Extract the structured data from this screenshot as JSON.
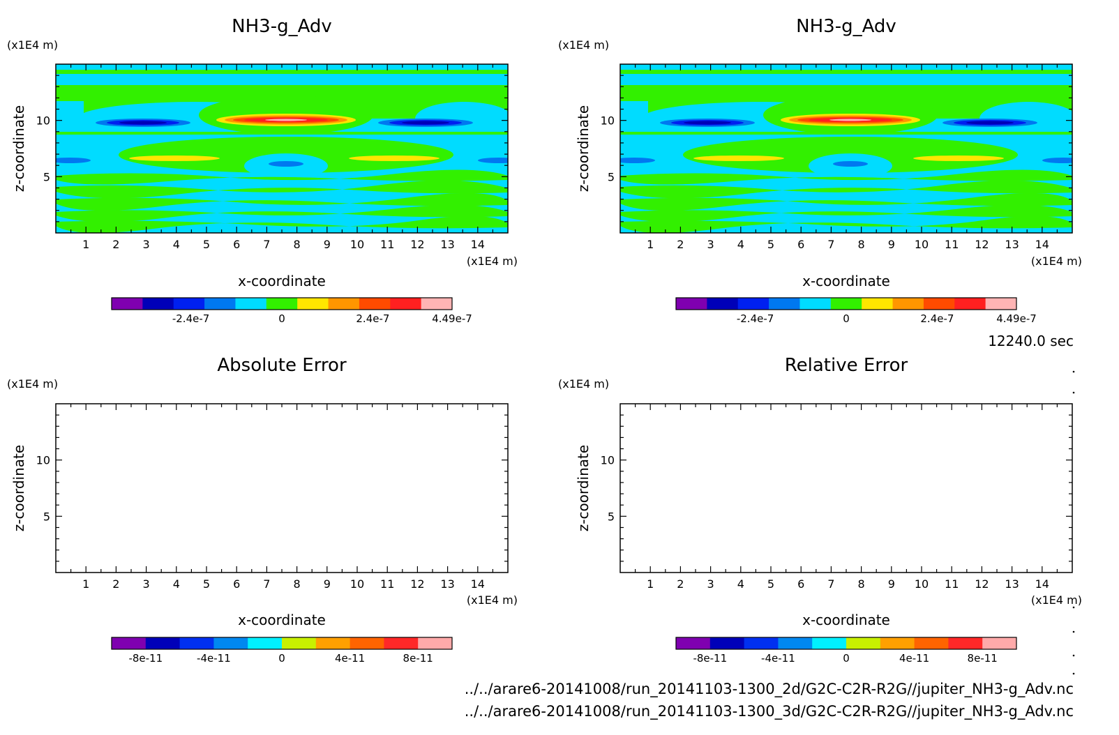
{
  "time_label": "12240.0 sec",
  "files": [
    "../../arare6-20141008/run_20141103-1300_2d/G2C-C2R-R2G//jupiter_NH3-g_Adv.nc",
    "../../arare6-20141008/run_20141103-1300_3d/G2C-C2R-R2G//jupiter_NH3-g_Adv.nc"
  ],
  "colors": {
    "levels_top": [
      "#7f00b0",
      "#0000b8",
      "#0020f0",
      "#0078f0",
      "#00dcff",
      "#32f000",
      "#ffe600",
      "#ff9600",
      "#ff4b00",
      "#ff2020",
      "#ffb4b4"
    ],
    "levels_bottom": [
      "#7f00b0",
      "#0000b8",
      "#0030f0",
      "#0088f0",
      "#00f0ff",
      "#c8f000",
      "#ffa000",
      "#ff6400",
      "#ff2828",
      "#ffaaaa"
    ]
  },
  "chart_data": [
    {
      "type": "heatmap",
      "title": "NH3-g_Adv",
      "xlabel": "x-coordinate",
      "ylabel": "z-coordinate",
      "x_unit": "(x1E4 m)",
      "y_unit": "(x1E4 m)",
      "xlim": [
        0,
        15
      ],
      "ylim": [
        0,
        15
      ],
      "x_ticks": [
        "1",
        "2",
        "3",
        "4",
        "5",
        "6",
        "7",
        "8",
        "9",
        "10",
        "11",
        "12",
        "13",
        "14"
      ],
      "y_ticks": [
        "5",
        "10"
      ],
      "colorbar_ticks": [
        "-2.4e-7",
        "0",
        "2.4e-7",
        "4.49e-7"
      ]
    },
    {
      "type": "heatmap",
      "title": "NH3-g_Adv",
      "xlabel": "x-coordinate",
      "ylabel": "z-coordinate",
      "x_unit": "(x1E4 m)",
      "y_unit": "(x1E4 m)",
      "xlim": [
        0,
        15
      ],
      "ylim": [
        0,
        15
      ],
      "x_ticks": [
        "1",
        "2",
        "3",
        "4",
        "5",
        "6",
        "7",
        "8",
        "9",
        "10",
        "11",
        "12",
        "13",
        "14"
      ],
      "y_ticks": [
        "5",
        "10"
      ],
      "colorbar_ticks": [
        "-2.4e-7",
        "0",
        "2.4e-7",
        "4.49e-7"
      ]
    },
    {
      "type": "heatmap",
      "title": "Absolute Error",
      "xlabel": "x-coordinate",
      "ylabel": "z-coordinate",
      "x_unit": "(x1E4 m)",
      "y_unit": "(x1E4 m)",
      "xlim": [
        0,
        15
      ],
      "ylim": [
        0,
        15
      ],
      "x_ticks": [
        "1",
        "2",
        "3",
        "4",
        "5",
        "6",
        "7",
        "8",
        "9",
        "10",
        "11",
        "12",
        "13",
        "14"
      ],
      "y_ticks": [
        "5",
        "10"
      ],
      "colorbar_ticks": [
        "-8e-11",
        "-4e-11",
        "0",
        "4e-11",
        "8e-11"
      ]
    },
    {
      "type": "heatmap",
      "title": "Relative Error",
      "xlabel": "x-coordinate",
      "ylabel": "z-coordinate",
      "x_unit": "(x1E4 m)",
      "y_unit": "(x1E4 m)",
      "xlim": [
        0,
        15
      ],
      "ylim": [
        0,
        15
      ],
      "x_ticks": [
        "1",
        "2",
        "3",
        "4",
        "5",
        "6",
        "7",
        "8",
        "9",
        "10",
        "11",
        "12",
        "13",
        "14"
      ],
      "y_ticks": [
        "5",
        "10"
      ],
      "colorbar_ticks": [
        "-8e-11",
        "-4e-11",
        "0",
        "4e-11",
        "8e-11"
      ]
    }
  ]
}
